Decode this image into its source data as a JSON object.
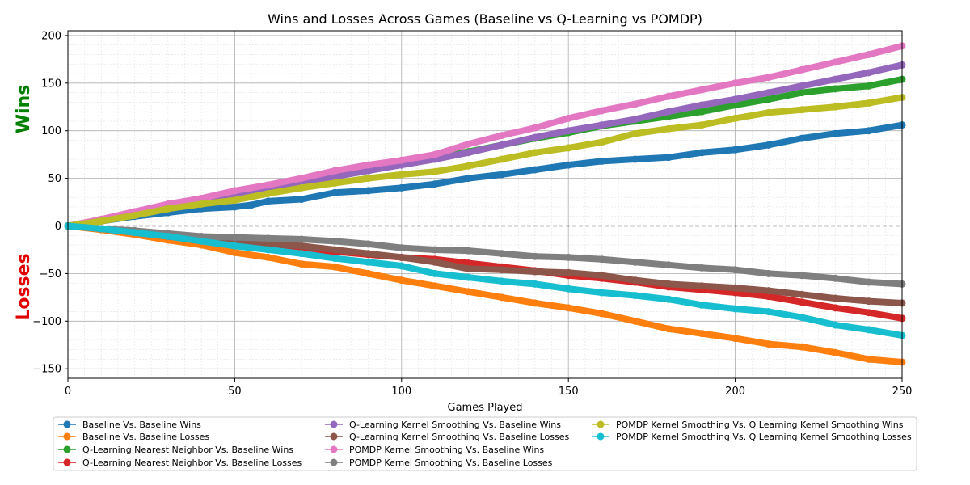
{
  "chart_data": {
    "type": "line",
    "title": "Wins and Losses Across Games (Baseline vs Q-Learning vs POMDP)",
    "xlabel": "Games Played",
    "ylabel_top": "Wins",
    "ylabel_bottom": "Losses",
    "ylabel_top_color": "#008000",
    "ylabel_bottom_color": "#e00000",
    "xlim": [
      0,
      250
    ],
    "ylim": [
      -160,
      205
    ],
    "xticks": [
      0,
      50,
      100,
      150,
      200,
      250
    ],
    "yticks": [
      -150,
      -100,
      -50,
      0,
      50,
      100,
      150,
      200
    ],
    "grid": true,
    "minor_grid": true,
    "zero_line": "dashed",
    "legend_placement": "bottom-center",
    "series": [
      {
        "name": "Baseline Vs. Baseline Wins",
        "color": "#1f77b4",
        "points": [
          [
            0,
            0
          ],
          [
            10,
            5
          ],
          [
            20,
            10
          ],
          [
            30,
            14
          ],
          [
            40,
            18
          ],
          [
            50,
            20
          ],
          [
            55,
            22
          ],
          [
            60,
            26
          ],
          [
            70,
            28
          ],
          [
            80,
            35
          ],
          [
            90,
            37
          ],
          [
            100,
            40
          ],
          [
            110,
            44
          ],
          [
            120,
            50
          ],
          [
            130,
            54
          ],
          [
            140,
            59
          ],
          [
            150,
            64
          ],
          [
            160,
            68
          ],
          [
            170,
            70
          ],
          [
            180,
            72
          ],
          [
            190,
            77
          ],
          [
            200,
            80
          ],
          [
            210,
            85
          ],
          [
            220,
            92
          ],
          [
            230,
            97
          ],
          [
            240,
            100
          ],
          [
            250,
            106
          ]
        ]
      },
      {
        "name": "Baseline Vs. Baseline Losses",
        "color": "#ff7f0e",
        "points": [
          [
            0,
            0
          ],
          [
            10,
            -4
          ],
          [
            20,
            -9
          ],
          [
            30,
            -15
          ],
          [
            40,
            -20
          ],
          [
            50,
            -28
          ],
          [
            60,
            -33
          ],
          [
            70,
            -40
          ],
          [
            80,
            -43
          ],
          [
            90,
            -50
          ],
          [
            100,
            -57
          ],
          [
            110,
            -63
          ],
          [
            120,
            -69
          ],
          [
            130,
            -75
          ],
          [
            140,
            -81
          ],
          [
            150,
            -86
          ],
          [
            160,
            -92
          ],
          [
            170,
            -100
          ],
          [
            180,
            -108
          ],
          [
            190,
            -113
          ],
          [
            200,
            -118
          ],
          [
            210,
            -124
          ],
          [
            220,
            -127
          ],
          [
            230,
            -133
          ],
          [
            240,
            -140
          ],
          [
            250,
            -143
          ]
        ]
      },
      {
        "name": "Q-Learning Nearest Neighbor Vs. Baseline Wins",
        "color": "#2ca02c",
        "points": [
          [
            0,
            0
          ],
          [
            10,
            6
          ],
          [
            20,
            13
          ],
          [
            30,
            19
          ],
          [
            40,
            25
          ],
          [
            50,
            30
          ],
          [
            60,
            38
          ],
          [
            70,
            45
          ],
          [
            80,
            52
          ],
          [
            90,
            58
          ],
          [
            100,
            65
          ],
          [
            110,
            72
          ],
          [
            120,
            78
          ],
          [
            130,
            85
          ],
          [
            140,
            92
          ],
          [
            150,
            98
          ],
          [
            160,
            105
          ],
          [
            170,
            110
          ],
          [
            180,
            115
          ],
          [
            190,
            120
          ],
          [
            200,
            127
          ],
          [
            210,
            133
          ],
          [
            220,
            140
          ],
          [
            230,
            144
          ],
          [
            240,
            147
          ],
          [
            250,
            154
          ]
        ]
      },
      {
        "name": "Q-Learning Nearest Neighbor Vs. Baseline Losses",
        "color": "#d62728",
        "points": [
          [
            0,
            0
          ],
          [
            10,
            -3
          ],
          [
            20,
            -7
          ],
          [
            30,
            -11
          ],
          [
            40,
            -15
          ],
          [
            50,
            -19
          ],
          [
            60,
            -22
          ],
          [
            70,
            -24
          ],
          [
            80,
            -27
          ],
          [
            90,
            -30
          ],
          [
            100,
            -33
          ],
          [
            110,
            -35
          ],
          [
            120,
            -39
          ],
          [
            130,
            -43
          ],
          [
            140,
            -47
          ],
          [
            150,
            -52
          ],
          [
            160,
            -55
          ],
          [
            170,
            -59
          ],
          [
            180,
            -64
          ],
          [
            190,
            -67
          ],
          [
            200,
            -70
          ],
          [
            210,
            -74
          ],
          [
            220,
            -80
          ],
          [
            230,
            -86
          ],
          [
            240,
            -91
          ],
          [
            250,
            -97
          ]
        ]
      },
      {
        "name": "Q-Learning Kernel Smoothing Vs. Baseline Wins",
        "color": "#9467bd",
        "points": [
          [
            0,
            0
          ],
          [
            10,
            6
          ],
          [
            20,
            13
          ],
          [
            30,
            20
          ],
          [
            40,
            26
          ],
          [
            50,
            32
          ],
          [
            60,
            38
          ],
          [
            70,
            45
          ],
          [
            80,
            52
          ],
          [
            90,
            58
          ],
          [
            100,
            64
          ],
          [
            110,
            70
          ],
          [
            120,
            77
          ],
          [
            130,
            85
          ],
          [
            140,
            93
          ],
          [
            150,
            100
          ],
          [
            160,
            106
          ],
          [
            170,
            112
          ],
          [
            180,
            120
          ],
          [
            190,
            127
          ],
          [
            200,
            133
          ],
          [
            210,
            140
          ],
          [
            220,
            147
          ],
          [
            230,
            154
          ],
          [
            240,
            161
          ],
          [
            250,
            169
          ]
        ]
      },
      {
        "name": "Q-Learning Kernel Smoothing Vs. Baseline Losses",
        "color": "#8c564b",
        "points": [
          [
            0,
            0
          ],
          [
            10,
            -3
          ],
          [
            20,
            -6
          ],
          [
            30,
            -10
          ],
          [
            40,
            -14
          ],
          [
            50,
            -18
          ],
          [
            60,
            -19
          ],
          [
            70,
            -21
          ],
          [
            80,
            -25
          ],
          [
            90,
            -29
          ],
          [
            100,
            -33
          ],
          [
            110,
            -38
          ],
          [
            120,
            -45
          ],
          [
            130,
            -46
          ],
          [
            140,
            -48
          ],
          [
            150,
            -49
          ],
          [
            160,
            -52
          ],
          [
            170,
            -57
          ],
          [
            180,
            -61
          ],
          [
            190,
            -63
          ],
          [
            200,
            -65
          ],
          [
            210,
            -68
          ],
          [
            220,
            -72
          ],
          [
            230,
            -76
          ],
          [
            240,
            -79
          ],
          [
            250,
            -81
          ]
        ]
      },
      {
        "name": "POMDP Kernel Smoothing Vs. Baseline Wins",
        "color": "#e377c2",
        "points": [
          [
            0,
            0
          ],
          [
            10,
            7
          ],
          [
            20,
            15
          ],
          [
            30,
            23
          ],
          [
            40,
            29
          ],
          [
            50,
            37
          ],
          [
            60,
            43
          ],
          [
            70,
            50
          ],
          [
            80,
            58
          ],
          [
            90,
            64
          ],
          [
            100,
            69
          ],
          [
            110,
            75
          ],
          [
            120,
            86
          ],
          [
            130,
            95
          ],
          [
            140,
            103
          ],
          [
            150,
            113
          ],
          [
            160,
            121
          ],
          [
            170,
            128
          ],
          [
            180,
            136
          ],
          [
            190,
            143
          ],
          [
            200,
            150
          ],
          [
            210,
            156
          ],
          [
            220,
            164
          ],
          [
            230,
            172
          ],
          [
            240,
            180
          ],
          [
            250,
            189
          ]
        ]
      },
      {
        "name": "POMDP Kernel Smoothing Vs. Baseline Losses",
        "color": "#7f7f7f",
        "points": [
          [
            0,
            0
          ],
          [
            10,
            -3
          ],
          [
            20,
            -5
          ],
          [
            30,
            -8
          ],
          [
            40,
            -11
          ],
          [
            50,
            -12
          ],
          [
            60,
            -13
          ],
          [
            70,
            -14
          ],
          [
            80,
            -16
          ],
          [
            90,
            -19
          ],
          [
            100,
            -23
          ],
          [
            110,
            -25
          ],
          [
            120,
            -26
          ],
          [
            130,
            -29
          ],
          [
            140,
            -32
          ],
          [
            150,
            -33
          ],
          [
            160,
            -35
          ],
          [
            170,
            -38
          ],
          [
            180,
            -41
          ],
          [
            190,
            -44
          ],
          [
            200,
            -46
          ],
          [
            210,
            -50
          ],
          [
            220,
            -52
          ],
          [
            230,
            -55
          ],
          [
            240,
            -59
          ],
          [
            250,
            -61
          ]
        ]
      },
      {
        "name": "POMDP Kernel Smoothing Vs. Q Learning Kernel Smoothing Wins",
        "color": "#bcbd22",
        "points": [
          [
            0,
            0
          ],
          [
            10,
            5
          ],
          [
            20,
            11
          ],
          [
            30,
            18
          ],
          [
            40,
            23
          ],
          [
            50,
            27
          ],
          [
            60,
            34
          ],
          [
            70,
            40
          ],
          [
            80,
            45
          ],
          [
            90,
            50
          ],
          [
            100,
            54
          ],
          [
            110,
            57
          ],
          [
            120,
            63
          ],
          [
            130,
            70
          ],
          [
            140,
            77
          ],
          [
            150,
            82
          ],
          [
            160,
            88
          ],
          [
            170,
            97
          ],
          [
            180,
            102
          ],
          [
            190,
            106
          ],
          [
            200,
            113
          ],
          [
            210,
            119
          ],
          [
            220,
            122
          ],
          [
            230,
            125
          ],
          [
            240,
            129
          ],
          [
            250,
            135
          ]
        ]
      },
      {
        "name": "POMDP Kernel Smoothing Vs. Q Learning Kernel Smoothing Losses",
        "color": "#17becf",
        "points": [
          [
            0,
            0
          ],
          [
            10,
            -3
          ],
          [
            20,
            -7
          ],
          [
            30,
            -11
          ],
          [
            40,
            -16
          ],
          [
            50,
            -21
          ],
          [
            60,
            -25
          ],
          [
            70,
            -29
          ],
          [
            80,
            -34
          ],
          [
            90,
            -38
          ],
          [
            100,
            -42
          ],
          [
            110,
            -50
          ],
          [
            120,
            -54
          ],
          [
            130,
            -58
          ],
          [
            140,
            -61
          ],
          [
            150,
            -66
          ],
          [
            160,
            -70
          ],
          [
            170,
            -73
          ],
          [
            180,
            -77
          ],
          [
            190,
            -83
          ],
          [
            200,
            -87
          ],
          [
            210,
            -90
          ],
          [
            220,
            -96
          ],
          [
            230,
            -104
          ],
          [
            240,
            -109
          ],
          [
            250,
            -115
          ]
        ]
      }
    ]
  }
}
